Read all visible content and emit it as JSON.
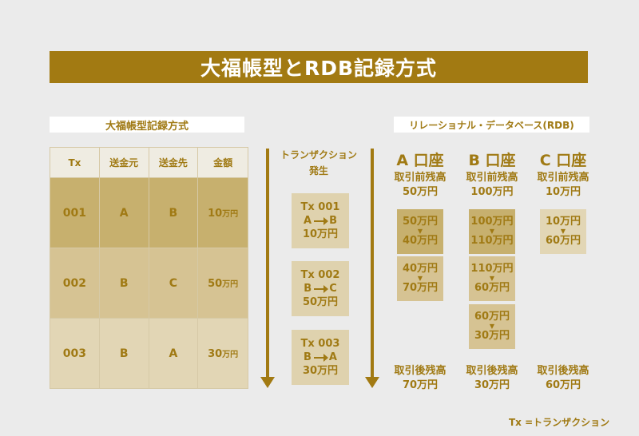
{
  "title": "大福帳型とRDB記録方式",
  "left_section": {
    "heading": "大福帳型記録方式",
    "columns": [
      "Tx",
      "送金元",
      "送金先",
      "金額"
    ],
    "rows": [
      {
        "tx": "001",
        "from": "A",
        "to": "B",
        "amount": "10",
        "unit": "万円"
      },
      {
        "tx": "002",
        "from": "B",
        "to": "C",
        "amount": "50",
        "unit": "万円"
      },
      {
        "tx": "003",
        "from": "B",
        "to": "A",
        "amount": "30",
        "unit": "万円"
      }
    ]
  },
  "right_section": {
    "heading": "リレーショナル・データベース(RDB)"
  },
  "tx_column": {
    "label_line1": "トランザクション",
    "label_line2": "発生",
    "events": [
      {
        "id": "Tx 001",
        "from": "A",
        "to": "B",
        "amount": "10万円"
      },
      {
        "id": "Tx 002",
        "from": "B",
        "to": "C",
        "amount": "50万円"
      },
      {
        "id": "Tx 003",
        "from": "B",
        "to": "A",
        "amount": "30万円"
      }
    ]
  },
  "accounts": [
    {
      "name": "A 口座",
      "before_label": "取引前残高",
      "before": "50万円",
      "changes": [
        {
          "from": "50万円",
          "to": "40万円"
        },
        {
          "from": "40万円",
          "to": "70万円"
        }
      ],
      "after_label": "取引後残高",
      "after": "70万円"
    },
    {
      "name": "B 口座",
      "before_label": "取引前残高",
      "before": "100万円",
      "changes": [
        {
          "from": "100万円",
          "to": "110万円"
        },
        {
          "from": "110万円",
          "to": "60万円"
        },
        {
          "from": "60万円",
          "to": "30万円"
        }
      ],
      "after_label": "取引後残高",
      "after": "30万円"
    },
    {
      "name": "C 口座",
      "before_label": "取引前残高",
      "before": "10万円",
      "changes": [
        {
          "from": "10万円",
          "to": "60万円"
        }
      ],
      "after_label": "取引後残高",
      "after": "60万円"
    }
  ],
  "footnote": "Tx =トランザクション",
  "symbols": {
    "down": "▼"
  },
  "colors": {
    "accent": "#a27a12",
    "text": "#a07a14",
    "background": "#ebebeb",
    "tone_dark": "#c7b06e",
    "tone_mid": "#d6c393",
    "tone_light": "#e2d6b5"
  }
}
